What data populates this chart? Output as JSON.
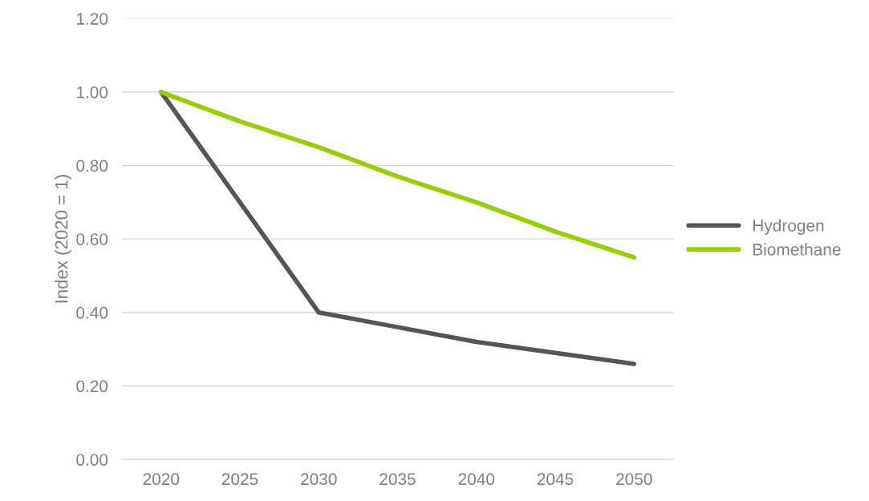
{
  "chart_data": {
    "type": "line",
    "ylabel": "Index (2020 = 1)",
    "categories": [
      "2020",
      "2025",
      "2030",
      "2035",
      "2040",
      "2045",
      "2050"
    ],
    "series": [
      {
        "name": "Hydrogen",
        "color": "#555555",
        "values": [
          1.0,
          0.7,
          0.4,
          0.36,
          0.32,
          0.29,
          0.26
        ]
      },
      {
        "name": "Biomethane",
        "color": "#92d000",
        "values": [
          1.0,
          0.92,
          0.85,
          0.77,
          0.7,
          0.62,
          0.55
        ]
      }
    ],
    "ylim": [
      0,
      1.2
    ],
    "yticks": [
      {
        "value": 0,
        "label": "0.00"
      },
      {
        "value": 0.2,
        "label": "0.20"
      },
      {
        "value": 0.4,
        "label": "0.40"
      },
      {
        "value": 0.6,
        "label": "0.60"
      },
      {
        "value": 0.8,
        "label": "0.80"
      },
      {
        "value": 1.0,
        "label": "1.00"
      },
      {
        "value": 1.2,
        "label": "1.20"
      }
    ],
    "grid": "y",
    "legend": "right",
    "marker": "none",
    "line_style": "solid"
  }
}
